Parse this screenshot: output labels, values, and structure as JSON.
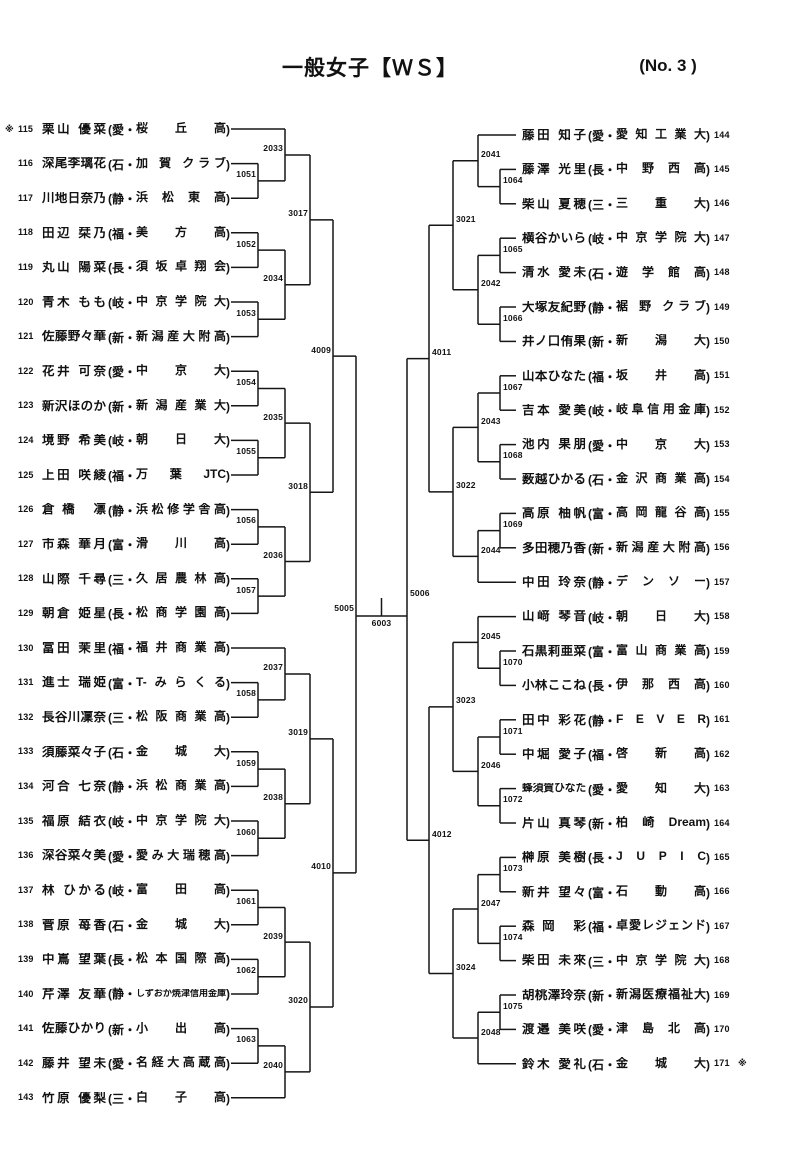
{
  "header": {
    "title": "一般女子【ＷＳ】",
    "page_no": "(No. 3 )"
  },
  "format": {
    "open": "(",
    "sep": "・",
    "close": ")"
  },
  "players_left": [
    {
      "no": "115",
      "marker": "※",
      "name": "栗山 優菜",
      "pref": "愛",
      "club": "桜 丘 高"
    },
    {
      "no": "116",
      "name": "深尾李璃花",
      "pref": "石",
      "club": "加 賀 クラブ"
    },
    {
      "no": "117",
      "name": "川地日奈乃",
      "pref": "静",
      "club": "浜 松 東 高"
    },
    {
      "no": "118",
      "name": "田辺 栞乃",
      "pref": "福",
      "club": "美 方 高"
    },
    {
      "no": "119",
      "name": "丸山 陽菜",
      "pref": "長",
      "club": "須 坂 卓 翔 会"
    },
    {
      "no": "120",
      "name": "青木 もも",
      "pref": "岐",
      "club": "中 京 学 院 大"
    },
    {
      "no": "121",
      "name": "佐藤野々華",
      "pref": "新",
      "club": "新潟産大附高"
    },
    {
      "no": "122",
      "name": "花井 可奈",
      "pref": "愛",
      "club": "中 京 大"
    },
    {
      "no": "123",
      "name": "新沢ほのか",
      "pref": "新",
      "club": "新 潟 産 業 大"
    },
    {
      "no": "124",
      "name": "境野 希美",
      "pref": "岐",
      "club": "朝 日 大"
    },
    {
      "no": "125",
      "name": "上田 咲綾",
      "pref": "福",
      "club": "万 葉 JTC"
    },
    {
      "no": "126",
      "name": "倉橋 凛",
      "pref": "静",
      "club": "浜松修学舎高"
    },
    {
      "no": "127",
      "name": "市森 華月",
      "pref": "富",
      "club": "滑 川 高"
    },
    {
      "no": "128",
      "name": "山際 千尋",
      "pref": "三",
      "club": "久 居 農 林 高"
    },
    {
      "no": "129",
      "name": "朝倉 姫星",
      "pref": "長",
      "club": "松 商 学 園 高"
    },
    {
      "no": "130",
      "name": "冨田 茉里",
      "pref": "福",
      "club": "福 井 商 業 高"
    },
    {
      "no": "131",
      "name": "進士 瑞姫",
      "pref": "富",
      "club": "T-みらくる"
    },
    {
      "no": "132",
      "name": "長谷川凜奈",
      "pref": "三",
      "club": "松 阪 商 業 高"
    },
    {
      "no": "133",
      "name": "須藤菜々子",
      "pref": "石",
      "club": "金 城 大"
    },
    {
      "no": "134",
      "name": "河合 七奈",
      "pref": "静",
      "club": "浜 松 商 業 高"
    },
    {
      "no": "135",
      "name": "福原 結衣",
      "pref": "岐",
      "club": "中 京 学 院 大"
    },
    {
      "no": "136",
      "name": "深谷菜々美",
      "pref": "愛",
      "club": "愛み大瑞穂高"
    },
    {
      "no": "137",
      "name": "林 ひかる",
      "pref": "岐",
      "club": "富 田 高"
    },
    {
      "no": "138",
      "name": "菅原 苺香",
      "pref": "石",
      "club": "金 城 大"
    },
    {
      "no": "139",
      "name": "中嶌 望葉",
      "pref": "長",
      "club": "松 本 国 際 高"
    },
    {
      "no": "140",
      "name": "芹澤 友華",
      "pref": "静",
      "club": "しずおか焼津信用金庫"
    },
    {
      "no": "141",
      "name": "佐藤ひかり",
      "pref": "新",
      "club": "小 出 高"
    },
    {
      "no": "142",
      "name": "藤井 望未",
      "pref": "愛",
      "club": "名経大高蔵高"
    },
    {
      "no": "143",
      "name": "竹原 優梨",
      "pref": "三",
      "club": "白 子 高"
    }
  ],
  "players_right": [
    {
      "no": "144",
      "name": "藤田 知子",
      "pref": "愛",
      "club": "愛 知 工 業 大"
    },
    {
      "no": "145",
      "name": "藤澤 光里",
      "pref": "長",
      "club": "中 野 西 高"
    },
    {
      "no": "146",
      "name": "柴山 夏穂",
      "pref": "三",
      "club": "三 重 大"
    },
    {
      "no": "147",
      "name": "横谷かいら",
      "pref": "岐",
      "club": "中 京 学 院 大"
    },
    {
      "no": "148",
      "name": "清水 愛未",
      "pref": "石",
      "club": "遊 学 館 高"
    },
    {
      "no": "149",
      "name": "大塚友紀野",
      "pref": "静",
      "club": "裾 野 クラブ"
    },
    {
      "no": "150",
      "name": "井ノ口侑果",
      "pref": "新",
      "club": "新 潟 大"
    },
    {
      "no": "151",
      "name": "山本ひなた",
      "pref": "福",
      "club": "坂 井 高"
    },
    {
      "no": "152",
      "name": "吉本 愛美",
      "pref": "岐",
      "club": "岐阜信用金庫"
    },
    {
      "no": "153",
      "name": "池内 果朋",
      "pref": "愛",
      "club": "中 京 大"
    },
    {
      "no": "154",
      "name": "薮越ひかる",
      "pref": "石",
      "club": "金 沢 商 業 高"
    },
    {
      "no": "155",
      "name": "高原 柚帆",
      "pref": "富",
      "club": "高 岡 龍 谷 高"
    },
    {
      "no": "156",
      "name": "多田穂乃香",
      "pref": "新",
      "club": "新潟産大附高"
    },
    {
      "no": "157",
      "name": "中田 玲奈",
      "pref": "静",
      "club": "デ ン ソ ー"
    },
    {
      "no": "158",
      "name": "山﨑 琴音",
      "pref": "岐",
      "club": "朝 日 大"
    },
    {
      "no": "159",
      "name": "石黒莉亜菜",
      "pref": "富",
      "club": "富 山 商 業 高"
    },
    {
      "no": "160",
      "name": "小林ここね",
      "pref": "長",
      "club": "伊 那 西 高"
    },
    {
      "no": "161",
      "name": "田中 彩花",
      "pref": "静",
      "club": "F E V E R"
    },
    {
      "no": "162",
      "name": "中堀 愛子",
      "pref": "福",
      "club": "啓 新 高"
    },
    {
      "no": "163",
      "name": "蜂須賀ひなた",
      "pref": "愛",
      "club": "愛 知 大"
    },
    {
      "no": "164",
      "name": "片山 真琴",
      "pref": "新",
      "club": "柏崎Dream"
    },
    {
      "no": "165",
      "name": "榊原 美樹",
      "pref": "長",
      "club": "J U P I C"
    },
    {
      "no": "166",
      "name": "新井 望々",
      "pref": "富",
      "club": "石 動 高"
    },
    {
      "no": "167",
      "name": "森岡 彩",
      "pref": "福",
      "club": "卓愛レジェンド"
    },
    {
      "no": "168",
      "name": "柴田 未來",
      "pref": "三",
      "club": "中 京 学 院 大"
    },
    {
      "no": "169",
      "name": "胡桃澤玲奈",
      "pref": "新",
      "club": "新潟医療福祉大"
    },
    {
      "no": "170",
      "name": "渡邉 美咲",
      "pref": "愛",
      "club": "津 島 北 高"
    },
    {
      "no": "171",
      "marker": "※",
      "name": "鈴木 愛礼",
      "pref": "石",
      "club": "金 城 大"
    }
  ],
  "bracket": {
    "left": {
      "rounds": [
        [
          {
            "label": "1051",
            "feeds": [
              "P116",
              "P117"
            ]
          },
          {
            "label": "1052",
            "feeds": [
              "P118",
              "P119"
            ]
          },
          {
            "label": "1053",
            "feeds": [
              "P120",
              "P121"
            ]
          },
          {
            "label": "1054",
            "feeds": [
              "P122",
              "P123"
            ]
          },
          {
            "label": "1055",
            "feeds": [
              "P124",
              "P125"
            ]
          },
          {
            "label": "1056",
            "feeds": [
              "P126",
              "P127"
            ]
          },
          {
            "label": "1057",
            "feeds": [
              "P128",
              "P129"
            ]
          },
          {
            "label": "1058",
            "feeds": [
              "P131",
              "P132"
            ]
          },
          {
            "label": "1059",
            "feeds": [
              "P133",
              "P134"
            ]
          },
          {
            "label": "1060",
            "feeds": [
              "P135",
              "P136"
            ]
          },
          {
            "label": "1061",
            "feeds": [
              "P137",
              "P138"
            ]
          },
          {
            "label": "1062",
            "feeds": [
              "P139",
              "P140"
            ]
          },
          {
            "label": "1063",
            "feeds": [
              "P141",
              "P142"
            ]
          }
        ],
        [
          {
            "label": "2033",
            "feeds": [
              "P115",
              "1051"
            ]
          },
          {
            "label": "2034",
            "feeds": [
              "1052",
              "1053"
            ]
          },
          {
            "label": "2035",
            "feeds": [
              "1054",
              "1055"
            ]
          },
          {
            "label": "2036",
            "feeds": [
              "1056",
              "1057"
            ]
          },
          {
            "label": "2037",
            "feeds": [
              "P130",
              "1058"
            ]
          },
          {
            "label": "2038",
            "feeds": [
              "1059",
              "1060"
            ]
          },
          {
            "label": "2039",
            "feeds": [
              "1061",
              "1062"
            ]
          },
          {
            "label": "2040",
            "feeds": [
              "1063",
              "P143"
            ]
          }
        ],
        [
          {
            "label": "3017",
            "feeds": [
              "2033",
              "2034"
            ]
          },
          {
            "label": "3018",
            "feeds": [
              "2035",
              "2036"
            ]
          },
          {
            "label": "3019",
            "feeds": [
              "2037",
              "2038"
            ]
          },
          {
            "label": "3020",
            "feeds": [
              "2039",
              "2040"
            ]
          }
        ],
        [
          {
            "label": "4009",
            "feeds": [
              "3017",
              "3018"
            ]
          },
          {
            "label": "4010",
            "feeds": [
              "3019",
              "3020"
            ]
          }
        ],
        [
          {
            "label": "5005",
            "feeds": [
              "4009",
              "4010"
            ]
          }
        ]
      ]
    },
    "right": {
      "rounds": [
        [
          {
            "label": "1064",
            "feeds": [
              "P145",
              "P146"
            ]
          },
          {
            "label": "1065",
            "feeds": [
              "P147",
              "P148"
            ]
          },
          {
            "label": "1066",
            "feeds": [
              "P149",
              "P150"
            ]
          },
          {
            "label": "1067",
            "feeds": [
              "P151",
              "P152"
            ]
          },
          {
            "label": "1068",
            "feeds": [
              "P153",
              "P154"
            ]
          },
          {
            "label": "1069",
            "feeds": [
              "P155",
              "P156"
            ]
          },
          {
            "label": "1070",
            "feeds": [
              "P159",
              "P160"
            ]
          },
          {
            "label": "1071",
            "feeds": [
              "P161",
              "P162"
            ]
          },
          {
            "label": "1072",
            "feeds": [
              "P163",
              "P164"
            ]
          },
          {
            "label": "1073",
            "feeds": [
              "P165",
              "P166"
            ]
          },
          {
            "label": "1074",
            "feeds": [
              "P167",
              "P168"
            ]
          },
          {
            "label": "1075",
            "feeds": [
              "P169",
              "P170"
            ]
          }
        ],
        [
          {
            "label": "2041",
            "feeds": [
              "P144",
              "1064"
            ]
          },
          {
            "label": "2042",
            "feeds": [
              "1065",
              "1066"
            ]
          },
          {
            "label": "2043",
            "feeds": [
              "1067",
              "1068"
            ]
          },
          {
            "label": "2044",
            "feeds": [
              "1069",
              "P157"
            ]
          },
          {
            "label": "2045",
            "feeds": [
              "P158",
              "1070"
            ]
          },
          {
            "label": "2046",
            "feeds": [
              "1071",
              "1072"
            ]
          },
          {
            "label": "2047",
            "feeds": [
              "1073",
              "1074"
            ]
          },
          {
            "label": "2048",
            "feeds": [
              "1075",
              "P171"
            ]
          }
        ],
        [
          {
            "label": "3021",
            "feeds": [
              "2041",
              "2042"
            ]
          },
          {
            "label": "3022",
            "feeds": [
              "2043",
              "2044"
            ]
          },
          {
            "label": "3023",
            "feeds": [
              "2045",
              "2046"
            ]
          },
          {
            "label": "3024",
            "feeds": [
              "2047",
              "2048"
            ]
          }
        ],
        [
          {
            "label": "4011",
            "feeds": [
              "3021",
              "3022"
            ]
          },
          {
            "label": "4012",
            "feeds": [
              "3023",
              "3024"
            ]
          }
        ],
        [
          {
            "label": "5006",
            "feeds": [
              "4011",
              "4012"
            ]
          }
        ]
      ]
    },
    "final": {
      "label": "6003",
      "feeds": [
        "5005",
        "5006"
      ]
    }
  }
}
